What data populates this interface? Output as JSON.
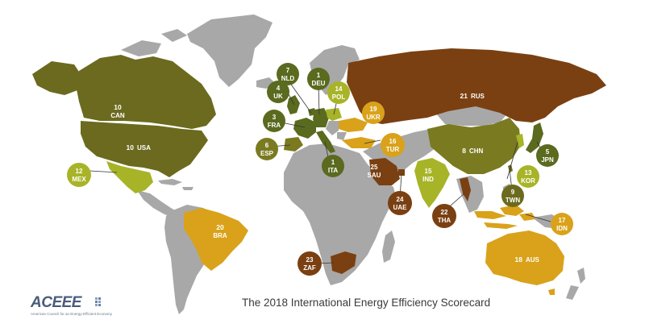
{
  "title": "The 2018 International Energy Efficiency Scorecard",
  "logo": {
    "wordmark": "ACEEE",
    "tagline": "American Council for an Energy-Efficient Economy"
  },
  "colors": {
    "rank_top": "#5a6a1e",
    "rank_high": "#7a7a20",
    "rank_mid": "#a8b428",
    "rank_low": "#d9a21a",
    "rank_bottom": "#7a4012",
    "unscored": "#a8a8a8"
  },
  "countries": [
    {
      "code": "CAN",
      "rank": "10"
    },
    {
      "code": "USA",
      "rank": "10"
    },
    {
      "code": "MEX",
      "rank": "12"
    },
    {
      "code": "BRA",
      "rank": "20"
    },
    {
      "code": "NLD",
      "rank": "7"
    },
    {
      "code": "DEU",
      "rank": "1"
    },
    {
      "code": "UK",
      "rank": "4"
    },
    {
      "code": "POL",
      "rank": "14"
    },
    {
      "code": "FRA",
      "rank": "3"
    },
    {
      "code": "UKR",
      "rank": "19"
    },
    {
      "code": "ESP",
      "rank": "6"
    },
    {
      "code": "TUR",
      "rank": "16"
    },
    {
      "code": "ITA",
      "rank": "1"
    },
    {
      "code": "SAU",
      "rank": "25"
    },
    {
      "code": "UAE",
      "rank": "24"
    },
    {
      "code": "RUS",
      "rank": "21"
    },
    {
      "code": "CHN",
      "rank": "8"
    },
    {
      "code": "JPN",
      "rank": "5"
    },
    {
      "code": "KOR",
      "rank": "13"
    },
    {
      "code": "TWN",
      "rank": "9"
    },
    {
      "code": "IND",
      "rank": "15"
    },
    {
      "code": "THA",
      "rank": "22"
    },
    {
      "code": "IDN",
      "rank": "17"
    },
    {
      "code": "AUS",
      "rank": "18"
    },
    {
      "code": "ZAF",
      "rank": "23"
    }
  ]
}
